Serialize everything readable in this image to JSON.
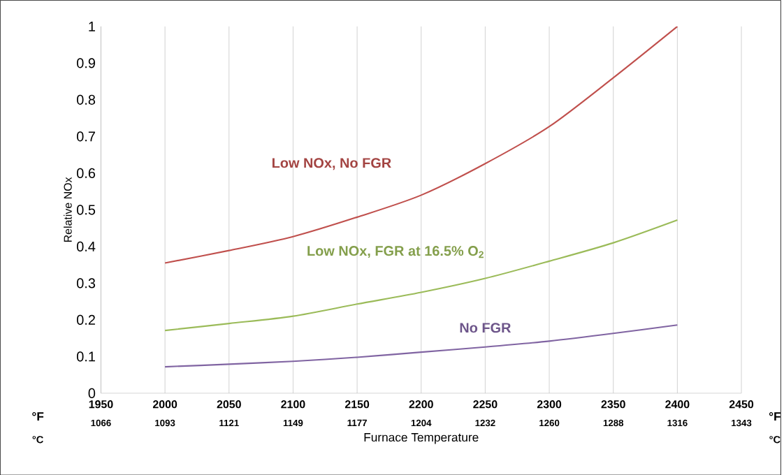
{
  "chart_data": {
    "type": "line",
    "xlabel": "Furnace Temperature",
    "ylabel": "Relative NOx",
    "x": [
      2000,
      2050,
      2100,
      2150,
      2200,
      2250,
      2300,
      2350,
      2400
    ],
    "series": [
      {
        "name": "Low NOx, No FGR",
        "color": "#c0504d",
        "values": [
          0.355,
          0.389,
          0.427,
          0.48,
          0.54,
          0.626,
          0.727,
          0.86,
          1.0
        ]
      },
      {
        "name": "Low NOx, FGR at 16.5% O$_{2}$",
        "color": "#9bbb59",
        "values": [
          0.171,
          0.19,
          0.21,
          0.243,
          0.275,
          0.313,
          0.36,
          0.41,
          0.472
        ]
      },
      {
        "name": "No FGR",
        "color": "#8064a2",
        "values": [
          0.072,
          0.079,
          0.087,
          0.098,
          0.112,
          0.126,
          0.142,
          0.163,
          0.186
        ]
      }
    ],
    "xlim": [
      1950,
      2450
    ],
    "xticks": [
      1950,
      2000,
      2050,
      2100,
      2150,
      2200,
      2250,
      2300,
      2350,
      2400,
      2450
    ],
    "ylim": [
      0,
      1
    ],
    "yticks": [
      0,
      0.1,
      0.2,
      0.3,
      0.4,
      0.5,
      0.6,
      0.7,
      0.8,
      0.9,
      1
    ],
    "x2lim": [
      1065.56,
      1343.33
    ],
    "x2ticks": [
      {
        "value": 1065.56,
        "label": "1066"
      },
      {
        "value": 1093.33,
        "label": "1093"
      },
      {
        "value": 1121.11,
        "label": "1121"
      },
      {
        "value": 1148.89,
        "label": "1149"
      },
      {
        "value": 1176.67,
        "label": "1177"
      },
      {
        "value": 1204.44,
        "label": "1204"
      },
      {
        "value": 1232.22,
        "label": "1232"
      },
      {
        "value": 1260.0,
        "label": "1260"
      },
      {
        "value": 1287.78,
        "label": "1288"
      },
      {
        "value": 1315.56,
        "label": "1316"
      },
      {
        "value": 1343.33,
        "label": "1343"
      }
    ],
    "annotations": [
      "°F",
      "°C"
    ],
    "grid": "x",
    "marker": "none",
    "line_style": "solid"
  }
}
